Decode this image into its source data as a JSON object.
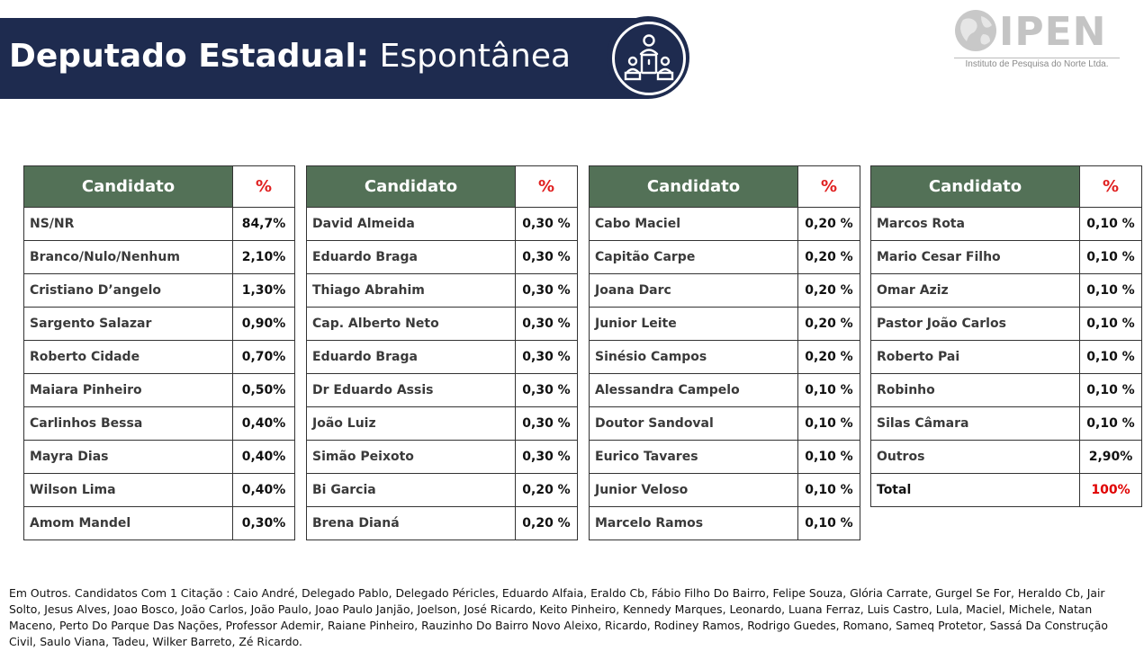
{
  "header": {
    "title_bold": "Deputado Estadual:",
    "title_light": "Espontânea"
  },
  "logo": {
    "text": "IPEN",
    "subtitle": "Instituto de Pesquisa do Norte Ltda."
  },
  "table_header": {
    "name": "Candidato",
    "pct": "%"
  },
  "tables": [
    [
      {
        "name": "NS/NR",
        "pct": "84,7%"
      },
      {
        "name": "Branco/Nulo/Nenhum",
        "pct": "2,10%"
      },
      {
        "name": "Cristiano D’angelo",
        "pct": "1,30%"
      },
      {
        "name": "Sargento Salazar",
        "pct": "0,90%"
      },
      {
        "name": "Roberto Cidade",
        "pct": "0,70%"
      },
      {
        "name": "Maiara Pinheiro",
        "pct": "0,50%"
      },
      {
        "name": "Carlinhos Bessa",
        "pct": "0,40%"
      },
      {
        "name": "Mayra Dias",
        "pct": "0,40%"
      },
      {
        "name": "Wilson Lima",
        "pct": "0,40%"
      },
      {
        "name": "Amom Mandel",
        "pct": "0,30%"
      }
    ],
    [
      {
        "name": "David Almeida",
        "pct": "0,30 %"
      },
      {
        "name": "Eduardo Braga",
        "pct": "0,30 %"
      },
      {
        "name": "Thiago Abrahim",
        "pct": "0,30 %"
      },
      {
        "name": "Cap. Alberto Neto",
        "pct": "0,30 %"
      },
      {
        "name": "Eduardo Braga",
        "pct": "0,30 %"
      },
      {
        "name": "Dr Eduardo Assis",
        "pct": "0,30 %"
      },
      {
        "name": "João Luiz",
        "pct": "0,30 %"
      },
      {
        "name": "Simão Peixoto",
        "pct": "0,30 %"
      },
      {
        "name": "Bi Garcia",
        "pct": "0,20 %"
      },
      {
        "name": "Brena Dianá",
        "pct": "0,20 %"
      }
    ],
    [
      {
        "name": "Cabo Maciel",
        "pct": "0,20 %"
      },
      {
        "name": "Capitão Carpe",
        "pct": "0,20 %"
      },
      {
        "name": "Joana Darc",
        "pct": "0,20 %"
      },
      {
        "name": "Junior Leite",
        "pct": "0,20 %"
      },
      {
        "name": "Sinésio Campos",
        "pct": "0,20 %"
      },
      {
        "name": "Alessandra Campelo",
        "pct": "0,10 %"
      },
      {
        "name": "Doutor Sandoval",
        "pct": "0,10 %"
      },
      {
        "name": "Eurico Tavares",
        "pct": "0,10 %"
      },
      {
        "name": " Junior Veloso",
        "pct": "0,10 %"
      },
      {
        "name": "Marcelo Ramos",
        "pct": "0,10 %"
      }
    ],
    [
      {
        "name": "Marcos Rota",
        "pct": "0,10 %"
      },
      {
        "name": "Mario Cesar Filho",
        "pct": "0,10 %"
      },
      {
        "name": "Omar Aziz",
        "pct": "0,10 %"
      },
      {
        "name": "Pastor João Carlos",
        "pct": "0,10 %"
      },
      {
        "name": "Roberto Pai",
        "pct": "0,10 %"
      },
      {
        "name": "Robinho",
        "pct": "0,10 %"
      },
      {
        "name": " Silas Câmara",
        "pct": "0,10 %"
      },
      {
        "name": "Outros",
        "pct": "2,90%"
      },
      {
        "name": "Total",
        "pct": "100%"
      }
    ]
  ],
  "colors": {
    "banner": "#1e2b4f",
    "header_green": "#537157",
    "accent_red": "#e02020"
  },
  "footnote": " Em Outros. Candidatos Com 1 Citação : Caio André, Delegado Pablo, Delegado Péricles, Eduardo Alfaia, Eraldo Cb, Fábio Filho Do Bairro, Felipe Souza, Glória Carrate, Gurgel Se For, Heraldo Cb, Jair Solto, Jesus Alves, Joao Bosco, João Carlos, João Paulo, Joao Paulo Janjão, Joelson, José Ricardo, Keito Pinheiro, Kennedy Marques, Leonardo, Luana Ferraz, Luis Castro, Lula, Maciel, Michele, Natan Maceno, Perto Do Parque Das Nações, Professor Ademir, Raiane Pinheiro, Rauzinho Do Bairro Novo Aleixo, Ricardo, Rodiney Ramos, Rodrigo Guedes, Romano, Sameq Protetor, Sassá Da Construção Civil, Saulo Viana, Tadeu, Wilker Barreto, Zé Ricardo."
}
